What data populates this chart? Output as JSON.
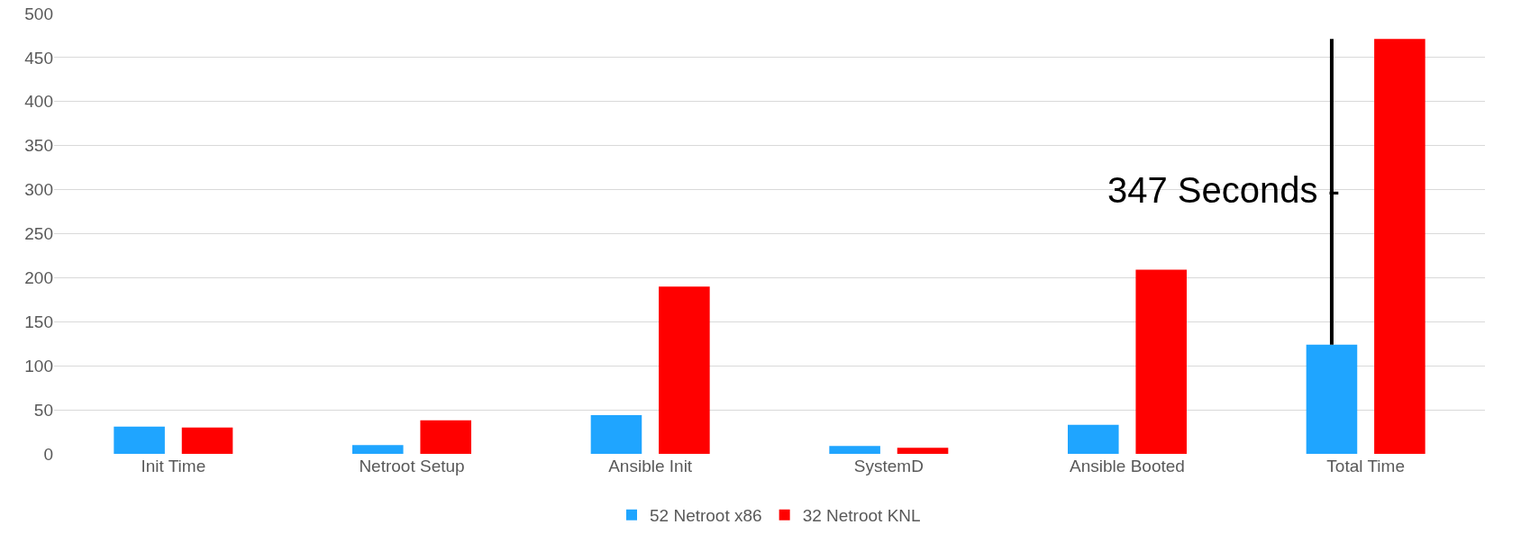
{
  "chart_data": {
    "type": "bar",
    "categories": [
      "Init Time",
      "Netroot Setup",
      "Ansible Init",
      "SystemD",
      "Ansible Booted",
      "Total Time"
    ],
    "series": [
      {
        "name": "52 Netroot x86",
        "color": "#1fa5ff",
        "values": [
          31,
          10,
          44,
          9,
          33,
          124
        ],
        "errors": [
          null,
          null,
          null,
          null,
          null,
          [
            124,
            471
          ]
        ]
      },
      {
        "name": "32 Netroot KNL",
        "color": "#ff0000",
        "values": [
          30,
          38,
          190,
          7,
          209,
          471
        ]
      }
    ],
    "ylim": [
      0,
      500
    ],
    "yticks": [
      0,
      50,
      100,
      150,
      200,
      250,
      300,
      350,
      400,
      450,
      500
    ],
    "grid": "y",
    "legend": "bottom",
    "annotations": [
      "347 Seconds -"
    ]
  }
}
